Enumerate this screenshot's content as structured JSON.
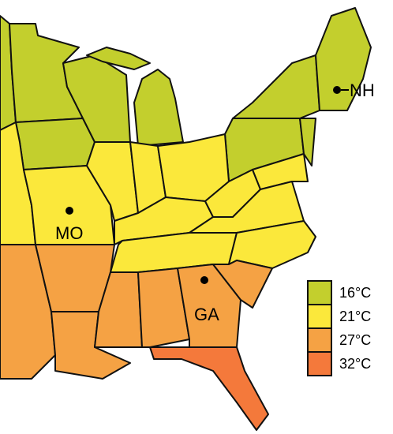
{
  "markers": [
    {
      "label": "NH"
    },
    {
      "label": "MO"
    },
    {
      "label": "GA"
    }
  ],
  "legend": {
    "items": [
      {
        "label": "16°C",
        "color": "#c3cf2d"
      },
      {
        "label": "21°C",
        "color": "#fbe83b"
      },
      {
        "label": "27°C",
        "color": "#f5a244"
      },
      {
        "label": "32°C",
        "color": "#f4793b"
      }
    ]
  }
}
